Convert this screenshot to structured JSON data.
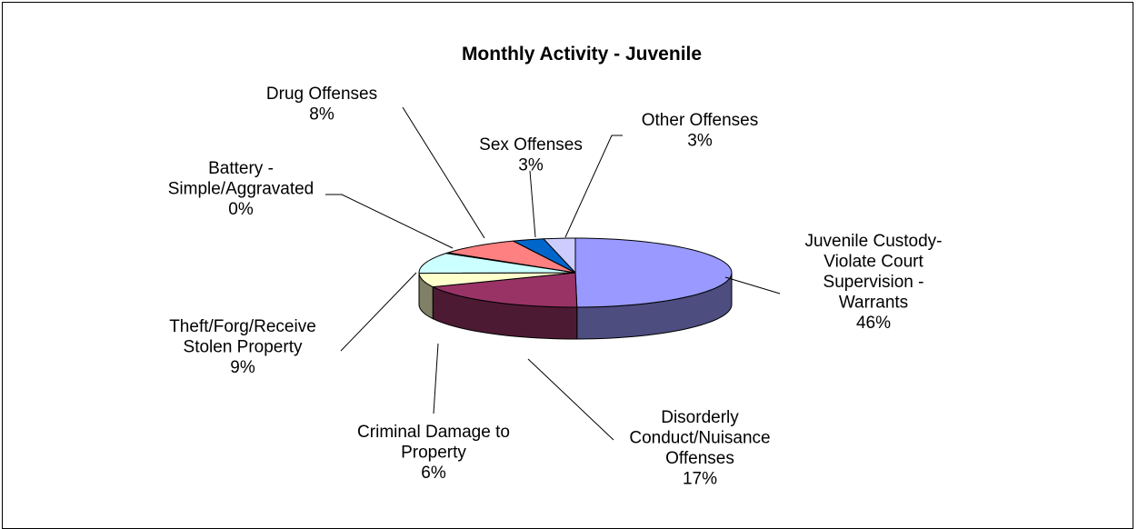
{
  "chart_data": {
    "type": "pie",
    "title": "Monthly Activity - Juvenile",
    "slices": [
      {
        "label_lines": [
          "Juvenile Custody-",
          "Violate Court",
          "Supervision -",
          "Warrants"
        ],
        "percent_label": "46%",
        "value": 46,
        "color": "#9999ff"
      },
      {
        "label_lines": [
          "Disorderly",
          "Conduct/Nuisance",
          "Offenses"
        ],
        "percent_label": "17%",
        "value": 17,
        "color": "#993366"
      },
      {
        "label_lines": [
          "Criminal Damage to",
          "Property"
        ],
        "percent_label": "6%",
        "value": 6,
        "color": "#ffffcc"
      },
      {
        "label_lines": [
          "Theft/Forg/Receive",
          "Stolen Property"
        ],
        "percent_label": "9%",
        "value": 9,
        "color": "#ccffff"
      },
      {
        "label_lines": [
          "Battery -",
          "Simple/Aggravated"
        ],
        "percent_label": "0%",
        "value": 0.3,
        "color": "#660066"
      },
      {
        "label_lines": [
          "Drug Offenses"
        ],
        "percent_label": "8%",
        "value": 8,
        "color": "#ff8080"
      },
      {
        "label_lines": [
          "Sex Offenses"
        ],
        "percent_label": "3%",
        "value": 3,
        "color": "#0066cc"
      },
      {
        "label_lines": [
          "Other Offenses"
        ],
        "percent_label": "3%",
        "value": 3,
        "color": "#ccccff"
      }
    ]
  }
}
